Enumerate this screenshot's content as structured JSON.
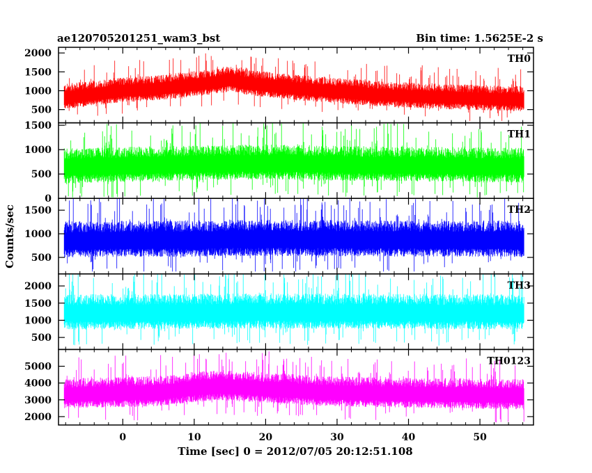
{
  "header": {
    "title": "ae120705201251_wam3_bst",
    "bin_time": "Bin time: 1.5625E-2 s"
  },
  "chart_data": {
    "type": "line",
    "xlabel": "Time [sec] 0 = 2012/07/05 20:12:51.108",
    "ylabel": "Counts/sec",
    "xlim": [
      -9,
      57.5
    ],
    "x_ticks": [
      0,
      10,
      20,
      30,
      40,
      50
    ],
    "x_start": -8.2,
    "x_end": 56.2,
    "grid": false,
    "panels": [
      {
        "name": "TH0",
        "color": "#ff0000",
        "ylim": [
          150,
          2150
        ],
        "y_ticks": [
          500,
          1000,
          1500,
          2000
        ],
        "mean_profile": [
          [
            -8,
            820
          ],
          [
            0,
            1000
          ],
          [
            5,
            1050
          ],
          [
            12,
            1200
          ],
          [
            15,
            1280
          ],
          [
            18,
            1180
          ],
          [
            25,
            1050
          ],
          [
            35,
            900
          ],
          [
            45,
            820
          ],
          [
            56,
            760
          ]
        ],
        "noise": 280,
        "spike_max": 2150,
        "floor": 200
      },
      {
        "name": "TH1",
        "color": "#00ff00",
        "ylim": [
          0,
          1550
        ],
        "y_ticks": [
          0,
          500,
          1000,
          1500
        ],
        "mean_profile": [
          [
            -8,
            640
          ],
          [
            10,
            700
          ],
          [
            20,
            720
          ],
          [
            35,
            680
          ],
          [
            56,
            650
          ]
        ],
        "noise": 300,
        "spike_max": 1550,
        "floor": 20
      },
      {
        "name": "TH2",
        "color": "#0000ff",
        "ylim": [
          150,
          1750
        ],
        "y_ticks": [
          500,
          1000,
          1500
        ],
        "mean_profile": [
          [
            -8,
            850
          ],
          [
            20,
            880
          ],
          [
            40,
            870
          ],
          [
            56,
            860
          ]
        ],
        "noise": 320,
        "spike_max": 1750,
        "floor": 200
      },
      {
        "name": "TH3",
        "color": "#00ffff",
        "ylim": [
          150,
          2350
        ],
        "y_ticks": [
          500,
          1000,
          1500,
          2000
        ],
        "mean_profile": [
          [
            -8,
            1200
          ],
          [
            20,
            1230
          ],
          [
            40,
            1210
          ],
          [
            56,
            1200
          ]
        ],
        "noise": 430,
        "spike_max": 2350,
        "floor": 250
      },
      {
        "name": "TH0123",
        "color": "#ff00ff",
        "ylim": [
          1500,
          6000
        ],
        "y_ticks": [
          2000,
          3000,
          4000,
          5000
        ],
        "mean_profile": [
          [
            -8,
            3300
          ],
          [
            5,
            3450
          ],
          [
            13,
            3800
          ],
          [
            18,
            3700
          ],
          [
            28,
            3450
          ],
          [
            40,
            3350
          ],
          [
            56,
            3250
          ]
        ],
        "noise": 750,
        "spike_max": 6000,
        "floor": 1600
      }
    ]
  }
}
